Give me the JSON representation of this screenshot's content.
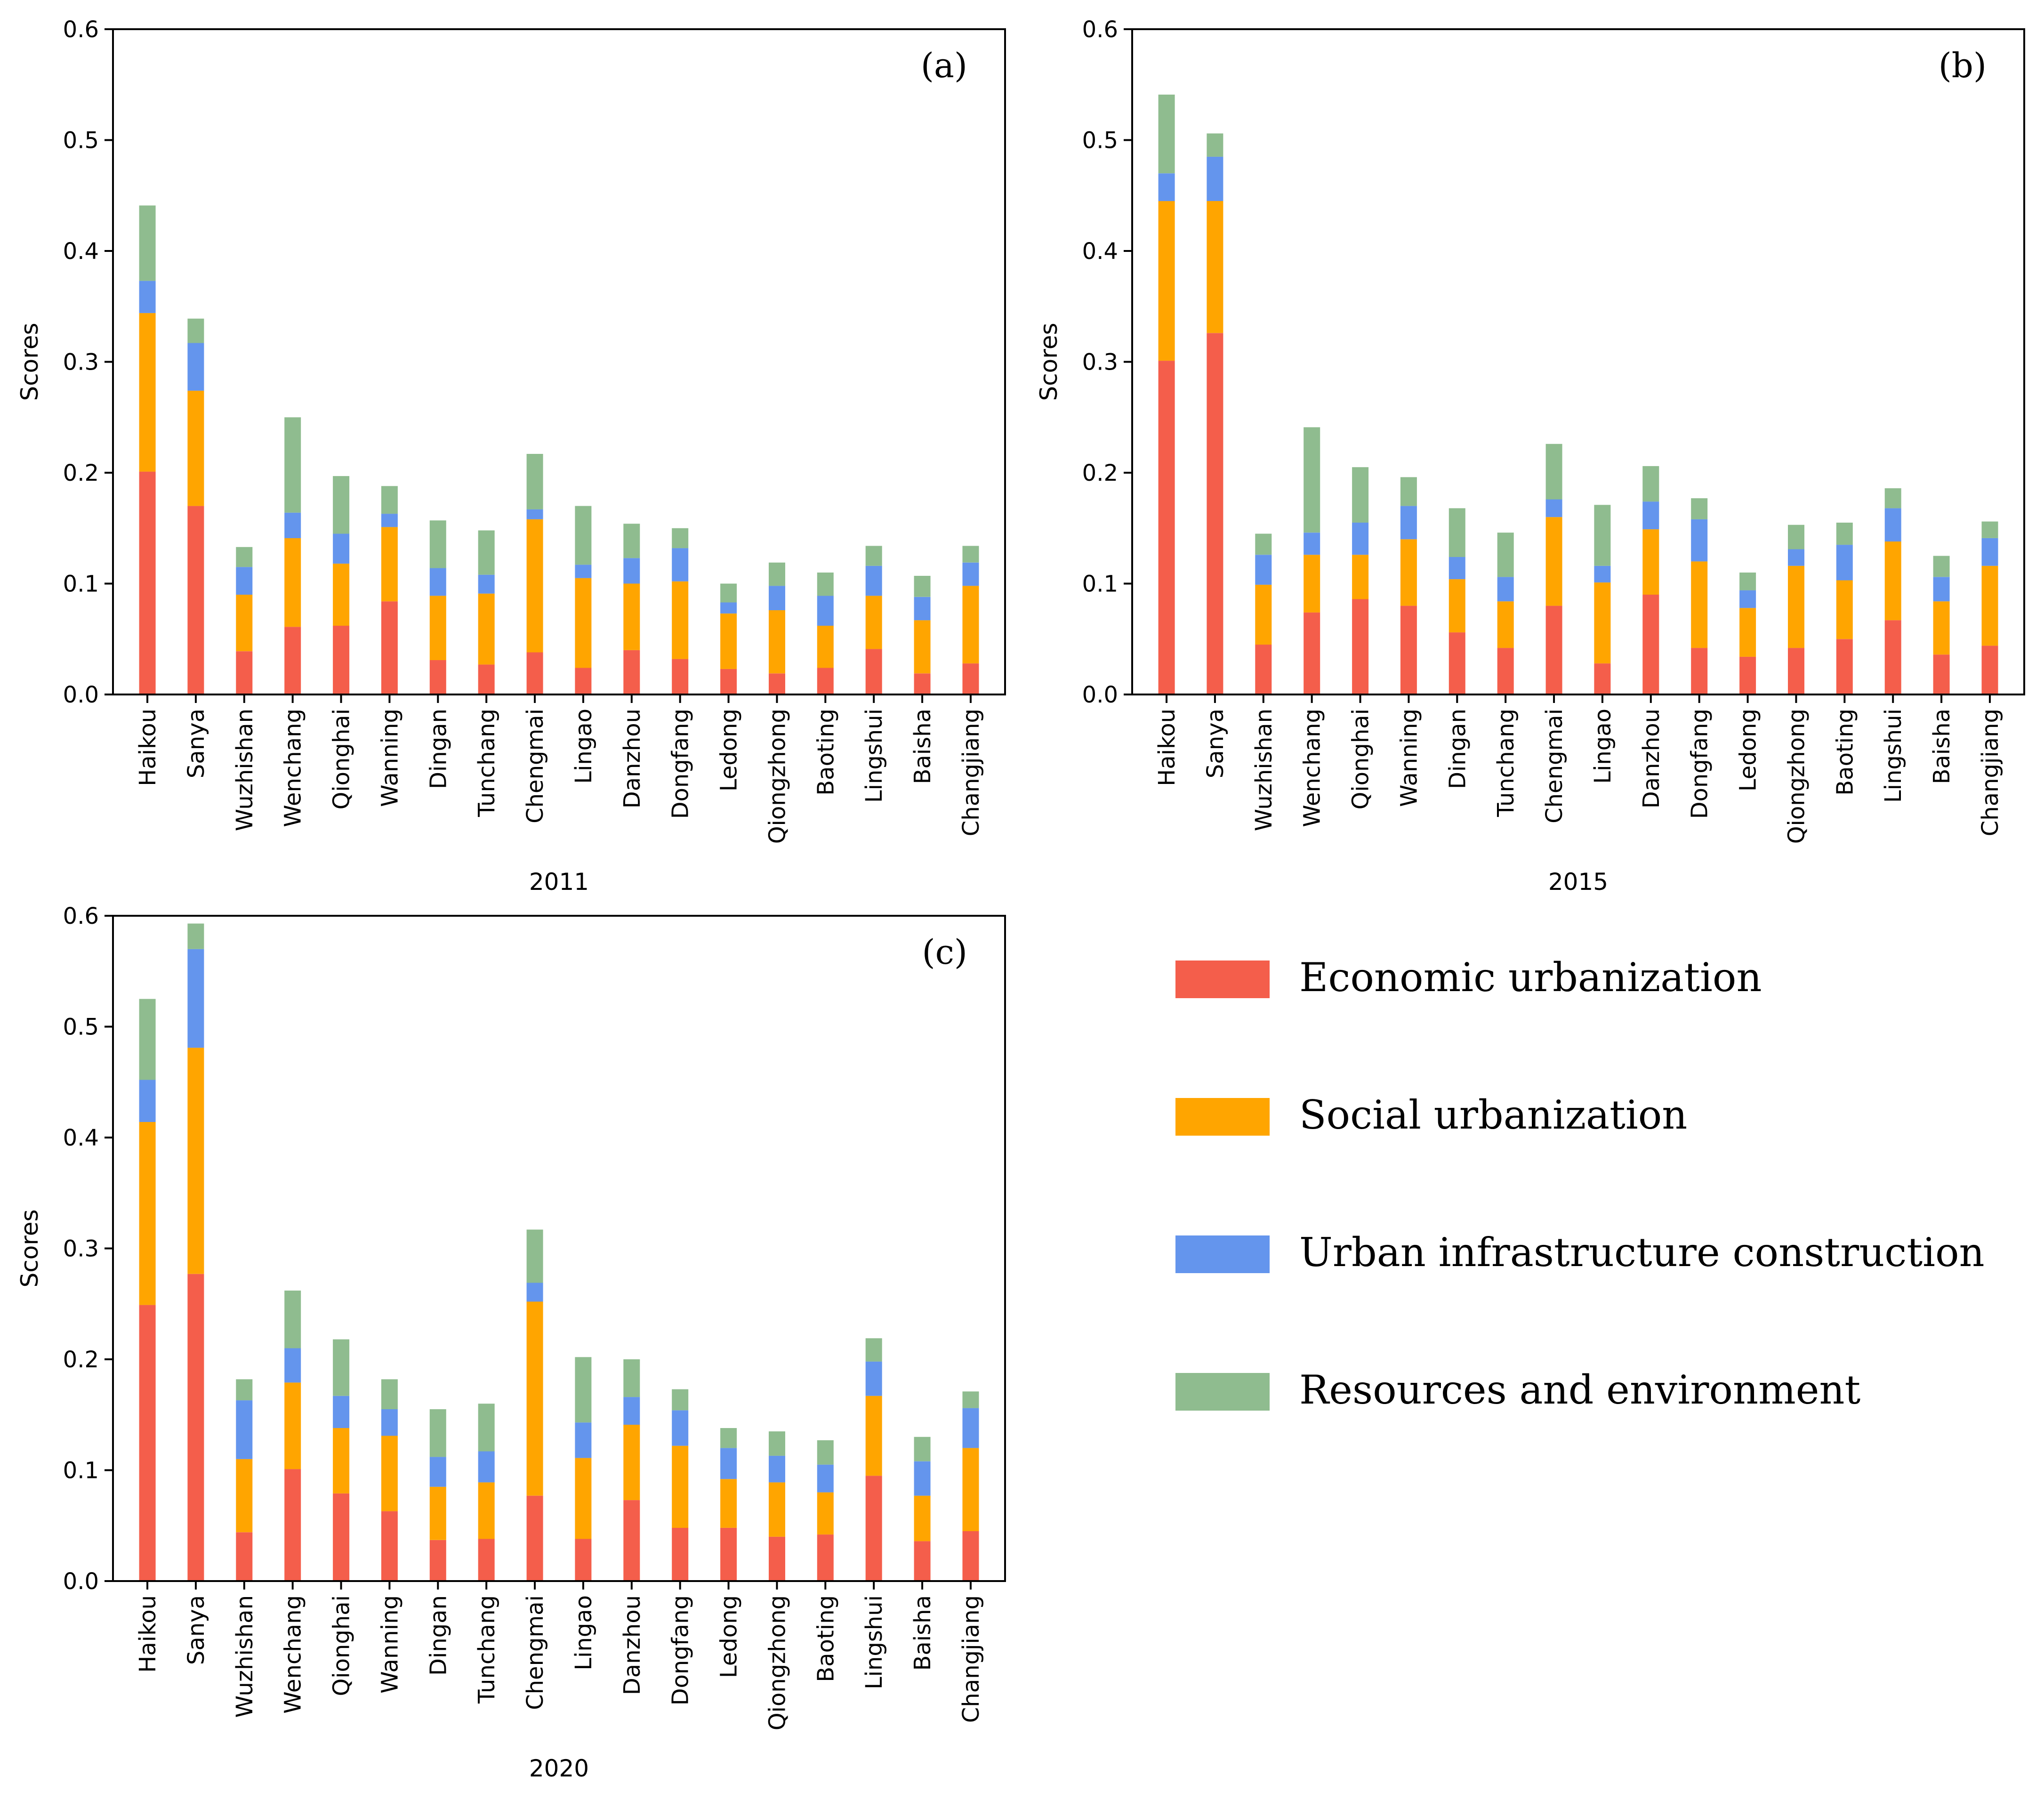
{
  "colors": {
    "economic": "#f45e4b",
    "social": "#ffa500",
    "infrastructure": "#6495ed",
    "resources": "#8fbc8f"
  },
  "legend": {
    "items": [
      {
        "key": "economic",
        "label": "Economic urbanization"
      },
      {
        "key": "social",
        "label": "Social urbanization"
      },
      {
        "key": "infrastructure",
        "label": "Urban infrastructure construction"
      },
      {
        "key": "resources",
        "label": "Resources and environment"
      }
    ]
  },
  "chart_data": [
    {
      "type": "bar",
      "stacked": true,
      "panel_label": "(a)",
      "xlabel": "2011",
      "ylabel": "Scores",
      "ylim": [
        0,
        0.6
      ],
      "yticks": [
        "0.0",
        "0.1",
        "0.2",
        "0.3",
        "0.4",
        "0.5",
        "0.6"
      ],
      "categories": [
        "Haikou",
        "Sanya",
        "Wuzhishan",
        "Wenchang",
        "Qionghai",
        "Wanning",
        "Dingan",
        "Tunchang",
        "Chengmai",
        "Lingao",
        "Danzhou",
        "Dongfang",
        "Ledong",
        "Qiongzhong",
        "Baoting",
        "Lingshui",
        "Baisha",
        "Changjiang"
      ],
      "series": [
        {
          "name": "Economic urbanization",
          "key": "economic",
          "values": [
            0.201,
            0.17,
            0.039,
            0.061,
            0.062,
            0.084,
            0.031,
            0.027,
            0.038,
            0.024,
            0.04,
            0.032,
            0.023,
            0.019,
            0.024,
            0.041,
            0.019,
            0.028
          ]
        },
        {
          "name": "Social urbanization",
          "key": "social",
          "values": [
            0.143,
            0.104,
            0.051,
            0.08,
            0.056,
            0.067,
            0.058,
            0.064,
            0.12,
            0.081,
            0.06,
            0.07,
            0.05,
            0.057,
            0.038,
            0.048,
            0.048,
            0.07
          ]
        },
        {
          "name": "Urban infrastructure construction",
          "key": "infrastructure",
          "values": [
            0.029,
            0.043,
            0.025,
            0.023,
            0.027,
            0.012,
            0.025,
            0.017,
            0.009,
            0.012,
            0.023,
            0.03,
            0.01,
            0.022,
            0.027,
            0.027,
            0.021,
            0.021
          ]
        },
        {
          "name": "Resources and environment",
          "key": "resources",
          "values": [
            0.068,
            0.022,
            0.018,
            0.086,
            0.052,
            0.025,
            0.043,
            0.04,
            0.05,
            0.053,
            0.031,
            0.018,
            0.017,
            0.021,
            0.021,
            0.018,
            0.019,
            0.015
          ]
        }
      ]
    },
    {
      "type": "bar",
      "stacked": true,
      "panel_label": "(b)",
      "xlabel": "2015",
      "ylabel": "Scores",
      "ylim": [
        0,
        0.6
      ],
      "yticks": [
        "0.0",
        "0.1",
        "0.2",
        "0.3",
        "0.4",
        "0.5",
        "0.6"
      ],
      "categories": [
        "Haikou",
        "Sanya",
        "Wuzhishan",
        "Wenchang",
        "Qionghai",
        "Wanning",
        "Dingan",
        "Tunchang",
        "Chengmai",
        "Lingao",
        "Danzhou",
        "Dongfang",
        "Ledong",
        "Qiongzhong",
        "Baoting",
        "Lingshui",
        "Baisha",
        "Changjiang"
      ],
      "series": [
        {
          "name": "Economic urbanization",
          "key": "economic",
          "values": [
            0.301,
            0.326,
            0.045,
            0.074,
            0.086,
            0.08,
            0.056,
            0.042,
            0.08,
            0.028,
            0.09,
            0.042,
            0.034,
            0.042,
            0.05,
            0.067,
            0.036,
            0.044
          ]
        },
        {
          "name": "Social urbanization",
          "key": "social",
          "values": [
            0.144,
            0.119,
            0.054,
            0.052,
            0.04,
            0.06,
            0.048,
            0.042,
            0.08,
            0.073,
            0.059,
            0.078,
            0.044,
            0.074,
            0.053,
            0.071,
            0.048,
            0.072
          ]
        },
        {
          "name": "Urban infrastructure construction",
          "key": "infrastructure",
          "values": [
            0.025,
            0.04,
            0.027,
            0.02,
            0.029,
            0.03,
            0.02,
            0.022,
            0.016,
            0.015,
            0.025,
            0.038,
            0.016,
            0.015,
            0.032,
            0.03,
            0.022,
            0.025
          ]
        },
        {
          "name": "Resources and environment",
          "key": "resources",
          "values": [
            0.071,
            0.021,
            0.019,
            0.095,
            0.05,
            0.026,
            0.044,
            0.04,
            0.05,
            0.055,
            0.032,
            0.019,
            0.016,
            0.022,
            0.02,
            0.018,
            0.019,
            0.015
          ]
        }
      ]
    },
    {
      "type": "bar",
      "stacked": true,
      "panel_label": "(c)",
      "xlabel": "2020",
      "ylabel": "Scores",
      "ylim": [
        0,
        0.6
      ],
      "yticks": [
        "0.0",
        "0.1",
        "0.2",
        "0.3",
        "0.4",
        "0.5",
        "0.6"
      ],
      "categories": [
        "Haikou",
        "Sanya",
        "Wuzhishan",
        "Wenchang",
        "Qionghai",
        "Wanning",
        "Dingan",
        "Tunchang",
        "Chengmai",
        "Lingao",
        "Danzhou",
        "Dongfang",
        "Ledong",
        "Qiongzhong",
        "Baoting",
        "Lingshui",
        "Baisha",
        "Changjiang"
      ],
      "series": [
        {
          "name": "Economic urbanization",
          "key": "economic",
          "values": [
            0.249,
            0.277,
            0.044,
            0.101,
            0.079,
            0.063,
            0.037,
            0.038,
            0.077,
            0.038,
            0.073,
            0.048,
            0.048,
            0.04,
            0.042,
            0.095,
            0.036,
            0.045
          ]
        },
        {
          "name": "Social urbanization",
          "key": "social",
          "values": [
            0.165,
            0.204,
            0.066,
            0.078,
            0.059,
            0.068,
            0.048,
            0.051,
            0.175,
            0.073,
            0.068,
            0.074,
            0.044,
            0.049,
            0.038,
            0.072,
            0.041,
            0.075
          ]
        },
        {
          "name": "Urban infrastructure construction",
          "key": "infrastructure",
          "values": [
            0.038,
            0.089,
            0.053,
            0.031,
            0.029,
            0.024,
            0.027,
            0.028,
            0.017,
            0.032,
            0.025,
            0.032,
            0.028,
            0.024,
            0.025,
            0.031,
            0.031,
            0.036
          ]
        },
        {
          "name": "Resources and environment",
          "key": "resources",
          "values": [
            0.073,
            0.023,
            0.019,
            0.052,
            0.051,
            0.027,
            0.043,
            0.043,
            0.048,
            0.059,
            0.034,
            0.019,
            0.018,
            0.022,
            0.022,
            0.021,
            0.022,
            0.015
          ]
        }
      ]
    }
  ]
}
